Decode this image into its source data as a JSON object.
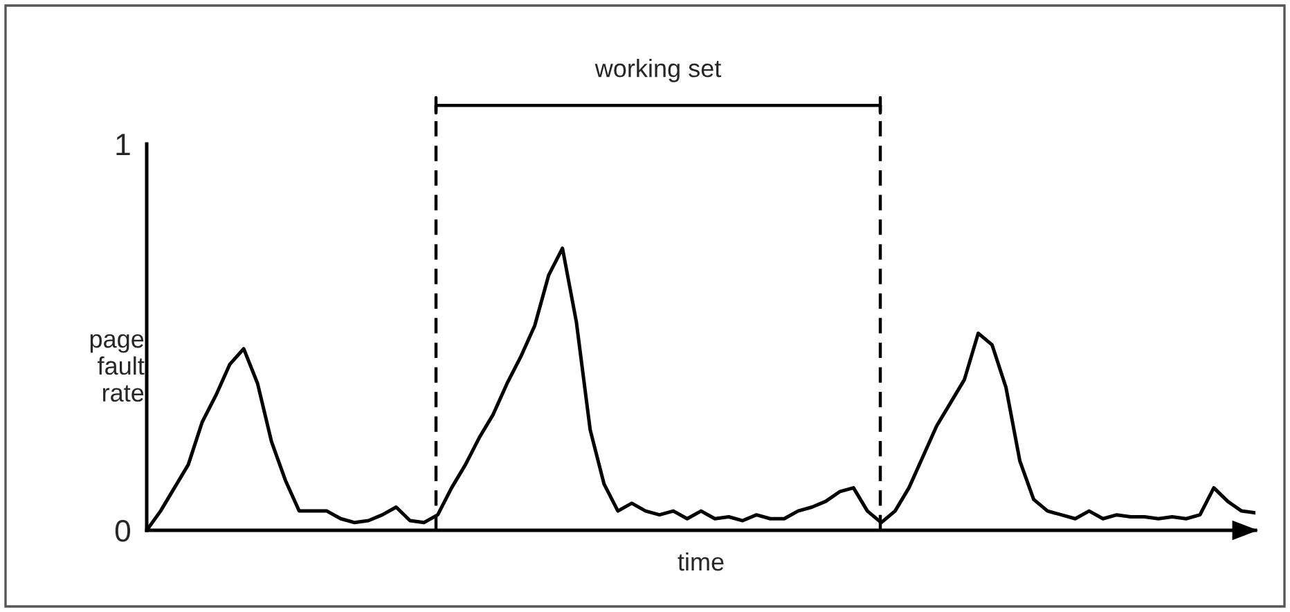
{
  "chart_data": {
    "type": "line",
    "xlabel": "time",
    "ylabel": "page\nfault\nrate",
    "categories": [
      null,
      null,
      null,
      null,
      null,
      null,
      null,
      null,
      null,
      null,
      null,
      null,
      null,
      null,
      null,
      null,
      null,
      null,
      null,
      null,
      null,
      null,
      null,
      null,
      null,
      null,
      null,
      null,
      null,
      null,
      null,
      null,
      null,
      null,
      null,
      null,
      null,
      null,
      null,
      null,
      null,
      null,
      null,
      null,
      null,
      null,
      null,
      null,
      null,
      null,
      null,
      null,
      null,
      null,
      null,
      null,
      null,
      null,
      null,
      null,
      null,
      null,
      null,
      null,
      null,
      null,
      null,
      null,
      null,
      null,
      null,
      null,
      null,
      null,
      null,
      null,
      null,
      null,
      null,
      null,
      null
    ],
    "series": [
      {
        "color": "#000000",
        "values": [
          0,
          0.05,
          0.11,
          0.17,
          0.28,
          0.35,
          0.43,
          0.47,
          0.38,
          0.23,
          0.13,
          0.05,
          0.05,
          0.05,
          0.03,
          0.02,
          0.025,
          0.04,
          0.06,
          0.025,
          0.02,
          0.04,
          0.11,
          0.17,
          0.24,
          0.3,
          0.38,
          0.45,
          0.53,
          0.66,
          0.73,
          0.54,
          0.26,
          0.12,
          0.05,
          0.07,
          0.05,
          0.04,
          0.05,
          0.03,
          0.05,
          0.03,
          0.035,
          0.025,
          0.04,
          0.03,
          0.03,
          0.05,
          0.06,
          0.075,
          0.1,
          0.11,
          0.05,
          0.02,
          0.05,
          0.11,
          0.19,
          0.27,
          0.33,
          0.39,
          0.51,
          0.48,
          0.37,
          0.18,
          0.08,
          0.05,
          0.04,
          0.03,
          0.05,
          0.03,
          0.04,
          0.035,
          0.035,
          0.03,
          0.035,
          0.03,
          0.04,
          0.11,
          0.075,
          0.05,
          0.045
        ]
      }
    ],
    "ylim": [
      0,
      1
    ],
    "yticks": [
      0,
      1
    ],
    "annotations": [
      "working set"
    ],
    "marker": "none",
    "line_style": "solid"
  }
}
